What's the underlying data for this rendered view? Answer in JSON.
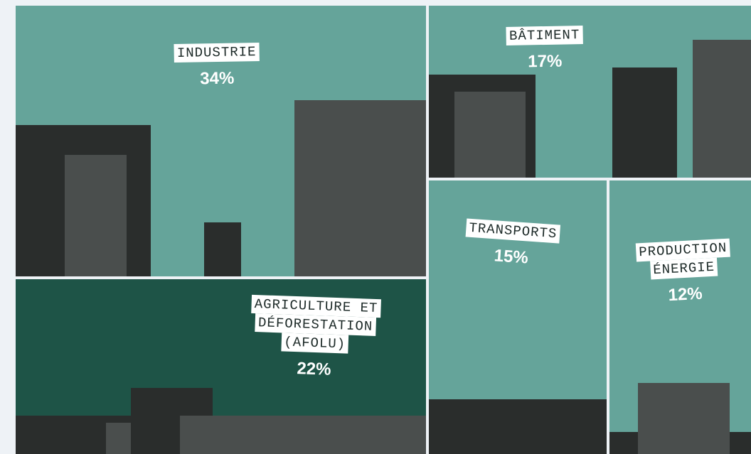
{
  "chart_data": {
    "type": "treemap",
    "categories": [
      "INDUSTRIE",
      "AGRICULTURE ET DÉFORESTATION (AFOLU)",
      "BÂTIMENT",
      "TRANSPORTS",
      "PRODUCTION ÉNERGIE"
    ],
    "values": [
      34,
      22,
      17,
      15,
      12
    ],
    "value_labels": [
      "34%",
      "22%",
      "17%",
      "15%",
      "12%"
    ],
    "colors": [
      "#65a49a",
      "#1e5447",
      "#65a49a",
      "#65a49a",
      "#65a49a"
    ]
  }
}
